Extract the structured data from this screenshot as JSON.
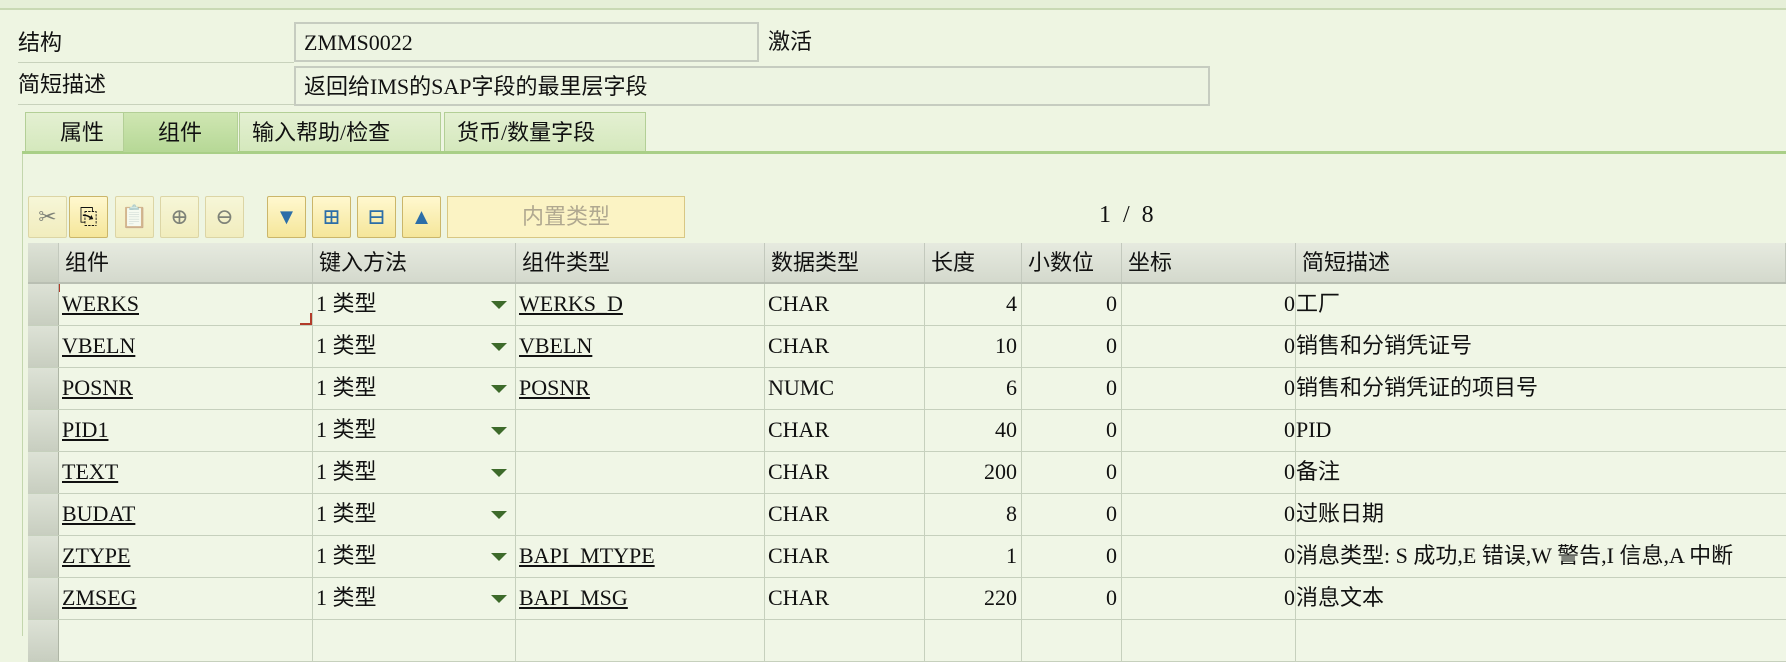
{
  "header": {
    "structure_label": "结构",
    "structure_value": "ZMMS0022",
    "status": "激活",
    "desc_label": "简短描述",
    "desc_value": "返回给IMS的SAP字段的最里层字段"
  },
  "tabs": [
    {
      "label": "属性"
    },
    {
      "label": "组件",
      "active": true
    },
    {
      "label": "输入帮助/检查"
    },
    {
      "label": "货币/数量字段"
    }
  ],
  "toolbar": {
    "icons": [
      "cut-icon",
      "copy-icon",
      "paste-icon",
      "insert-row-icon",
      "delete-row-icon",
      "scroll-down-icon",
      "expand-icon",
      "collapse-icon",
      "scroll-up-icon"
    ],
    "builtin_label": "内置类型",
    "pager": "1  /  8"
  },
  "columns": [
    "组件",
    "键入方法",
    "组件类型",
    "数据类型",
    "长度",
    "小数位",
    "坐标",
    "简短描述"
  ],
  "rows": [
    {
      "comp": "WERKS",
      "method": "1 类型",
      "ctype": "WERKS_D",
      "dtype": "CHAR",
      "len": "4",
      "dec": "0",
      "coord": "0",
      "desc": "工厂"
    },
    {
      "comp": "VBELN",
      "method": "1 类型",
      "ctype": "VBELN",
      "dtype": "CHAR",
      "len": "10",
      "dec": "0",
      "coord": "0",
      "desc": "销售和分销凭证号"
    },
    {
      "comp": "POSNR",
      "method": "1 类型",
      "ctype": "POSNR",
      "dtype": "NUMC",
      "len": "6",
      "dec": "0",
      "coord": "0",
      "desc": "销售和分销凭证的项目号"
    },
    {
      "comp": "PID1",
      "method": "1 类型",
      "ctype": "",
      "dtype": "CHAR",
      "len": "40",
      "dec": "0",
      "coord": "0",
      "desc": "PID"
    },
    {
      "comp": "TEXT",
      "method": "1 类型",
      "ctype": "",
      "dtype": "CHAR",
      "len": "200",
      "dec": "0",
      "coord": "0",
      "desc": "备注"
    },
    {
      "comp": "BUDAT",
      "method": "1 类型",
      "ctype": "",
      "dtype": "CHAR",
      "len": "8",
      "dec": "0",
      "coord": "0",
      "desc": "过账日期"
    },
    {
      "comp": "ZTYPE",
      "method": "1 类型",
      "ctype": "BAPI_MTYPE",
      "dtype": "CHAR",
      "len": "1",
      "dec": "0",
      "coord": "0",
      "desc": "消息类型: S 成功,E 错误,W 警告,I 信息,A 中断"
    },
    {
      "comp": "ZMSEG",
      "method": "1 类型",
      "ctype": "BAPI_MSG",
      "dtype": "CHAR",
      "len": "220",
      "dec": "0",
      "coord": "0",
      "desc": "消息文本"
    }
  ]
}
